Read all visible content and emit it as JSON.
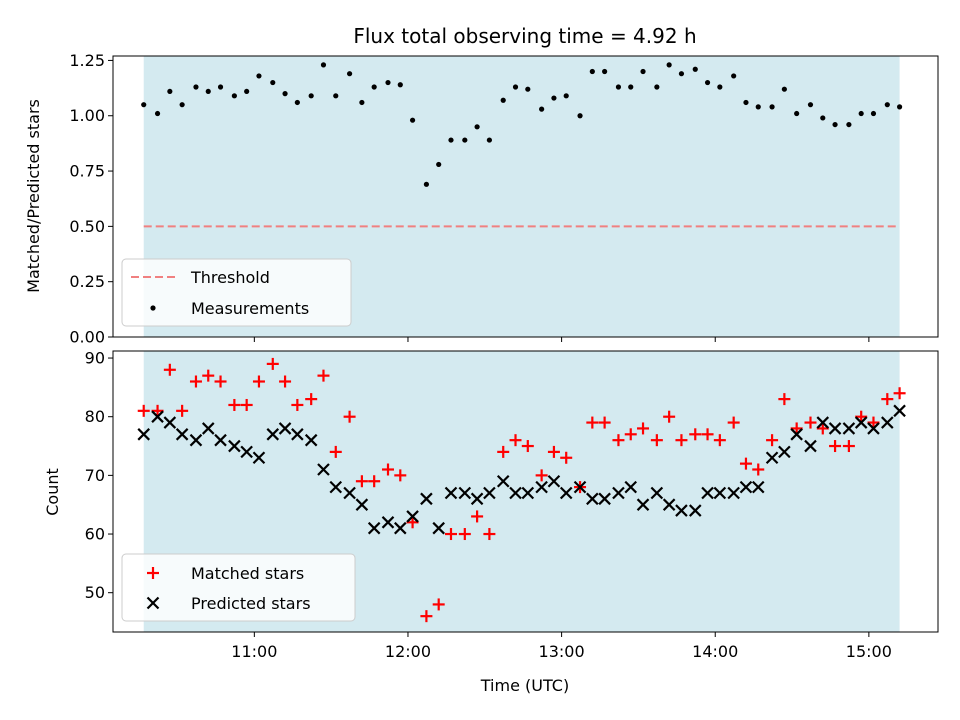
{
  "chart_data": {
    "type": "scatter",
    "title": "Flux total observing time = 4.92 h",
    "xlabel": "Time (UTC)",
    "x_units": "hours UTC",
    "x_ticks": [
      "11:00",
      "12:00",
      "13:00",
      "14:00",
      "15:00"
    ],
    "x_tick_values": [
      11,
      12,
      13,
      14,
      15
    ],
    "xlim": [
      10.08,
      15.45
    ],
    "observing_window": [
      10.28,
      15.2
    ],
    "shade_color": "#d4eaf0",
    "panels": [
      {
        "ylabel": "Matched/Predicted stars",
        "ylim": [
          0,
          1.27
        ],
        "y_ticks": [
          "0.00",
          "0.25",
          "0.50",
          "0.75",
          "1.00",
          "1.25"
        ],
        "y_tick_values": [
          0,
          0.25,
          0.5,
          0.75,
          1.0,
          1.25
        ],
        "legend_placement": "lower-left",
        "threshold": {
          "name": "Threshold",
          "value": 0.5,
          "color": "#f08080",
          "style": "dashed"
        },
        "series": [
          {
            "name": "Measurements",
            "marker": "dot",
            "color": "#000000",
            "x": [
              10.28,
              10.37,
              10.45,
              10.53,
              10.62,
              10.7,
              10.78,
              10.87,
              10.95,
              11.03,
              11.12,
              11.2,
              11.28,
              11.37,
              11.45,
              11.53,
              11.62,
              11.7,
              11.78,
              11.87,
              11.95,
              12.03,
              12.12,
              12.2,
              12.28,
              12.37,
              12.45,
              12.53,
              12.62,
              12.7,
              12.78,
              12.87,
              12.95,
              13.03,
              13.12,
              13.2,
              13.28,
              13.37,
              13.45,
              13.53,
              13.62,
              13.7,
              13.78,
              13.87,
              13.95,
              14.03,
              14.12,
              14.2,
              14.28,
              14.37,
              14.45,
              14.53,
              14.62,
              14.7,
              14.78,
              14.87,
              14.95,
              15.03,
              15.12,
              15.2
            ],
            "y": [
              1.05,
              1.01,
              1.11,
              1.05,
              1.13,
              1.11,
              1.13,
              1.09,
              1.11,
              1.18,
              1.15,
              1.1,
              1.06,
              1.09,
              1.23,
              1.09,
              1.19,
              1.06,
              1.13,
              1.15,
              1.14,
              0.98,
              0.69,
              0.78,
              0.89,
              0.89,
              0.95,
              0.89,
              1.07,
              1.13,
              1.12,
              1.03,
              1.08,
              1.09,
              1.0,
              1.2,
              1.2,
              1.13,
              1.13,
              1.2,
              1.13,
              1.23,
              1.19,
              1.21,
              1.15,
              1.13,
              1.18,
              1.06,
              1.04,
              1.04,
              1.12,
              1.01,
              1.05,
              0.99,
              0.96,
              0.96,
              1.01,
              1.01,
              1.05,
              1.04
            ]
          }
        ]
      },
      {
        "ylabel": "Count",
        "ylim": [
          43.3,
          91.2
        ],
        "y_ticks": [
          "50",
          "60",
          "70",
          "80",
          "90"
        ],
        "y_tick_values": [
          50,
          60,
          70,
          80,
          90
        ],
        "legend_placement": "lower-left",
        "series": [
          {
            "name": "Matched stars",
            "marker": "plus",
            "color": "#ff0000",
            "x": [
              10.28,
              10.37,
              10.45,
              10.53,
              10.62,
              10.7,
              10.78,
              10.87,
              10.95,
              11.03,
              11.12,
              11.2,
              11.28,
              11.37,
              11.45,
              11.53,
              11.62,
              11.7,
              11.78,
              11.87,
              11.95,
              12.03,
              12.12,
              12.2,
              12.28,
              12.37,
              12.45,
              12.53,
              12.62,
              12.7,
              12.78,
              12.87,
              12.95,
              13.03,
              13.12,
              13.2,
              13.28,
              13.37,
              13.45,
              13.53,
              13.62,
              13.7,
              13.78,
              13.87,
              13.95,
              14.03,
              14.12,
              14.2,
              14.28,
              14.37,
              14.45,
              14.53,
              14.62,
              14.7,
              14.78,
              14.87,
              14.95,
              15.03,
              15.12,
              15.2
            ],
            "y": [
              81,
              81,
              88,
              81,
              86,
              87,
              86,
              82,
              82,
              86,
              89,
              86,
              82,
              83,
              87,
              74,
              80,
              69,
              69,
              71,
              70,
              62,
              46,
              48,
              60,
              60,
              63,
              60,
              74,
              76,
              75,
              70,
              74,
              73,
              68,
              79,
              79,
              76,
              77,
              78,
              76,
              80,
              76,
              77,
              77,
              76,
              79,
              72,
              71,
              76,
              83,
              78,
              79,
              78,
              75,
              75,
              80,
              79,
              83,
              84
            ]
          },
          {
            "name": "Predicted stars",
            "marker": "x",
            "color": "#000000",
            "x": [
              10.28,
              10.37,
              10.45,
              10.53,
              10.62,
              10.7,
              10.78,
              10.87,
              10.95,
              11.03,
              11.12,
              11.2,
              11.28,
              11.37,
              11.45,
              11.53,
              11.62,
              11.7,
              11.78,
              11.87,
              11.95,
              12.03,
              12.12,
              12.2,
              12.28,
              12.37,
              12.45,
              12.53,
              12.62,
              12.7,
              12.78,
              12.87,
              12.95,
              13.03,
              13.12,
              13.2,
              13.28,
              13.37,
              13.45,
              13.53,
              13.62,
              13.7,
              13.78,
              13.87,
              13.95,
              14.03,
              14.12,
              14.2,
              14.28,
              14.37,
              14.45,
              14.53,
              14.62,
              14.7,
              14.78,
              14.87,
              14.95,
              15.03,
              15.12,
              15.2
            ],
            "y": [
              77,
              80,
              79,
              77,
              76,
              78,
              76,
              75,
              74,
              73,
              77,
              78,
              77,
              76,
              71,
              68,
              67,
              65,
              61,
              62,
              61,
              63,
              66,
              61,
              67,
              67,
              66,
              67,
              69,
              67,
              67,
              68,
              69,
              67,
              68,
              66,
              66,
              67,
              68,
              65,
              67,
              65,
              64,
              64,
              67,
              67,
              67,
              68,
              68,
              73,
              74,
              77,
              75,
              79,
              78,
              78,
              79,
              78,
              79,
              81
            ]
          }
        ]
      }
    ]
  }
}
